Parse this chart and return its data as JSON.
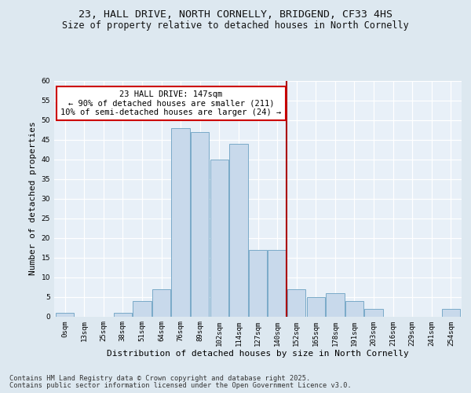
{
  "title_line1": "23, HALL DRIVE, NORTH CORNELLY, BRIDGEND, CF33 4HS",
  "title_line2": "Size of property relative to detached houses in North Cornelly",
  "xlabel": "Distribution of detached houses by size in North Cornelly",
  "ylabel": "Number of detached properties",
  "bin_labels": [
    "0sqm",
    "13sqm",
    "25sqm",
    "38sqm",
    "51sqm",
    "64sqm",
    "76sqm",
    "89sqm",
    "102sqm",
    "114sqm",
    "127sqm",
    "140sqm",
    "152sqm",
    "165sqm",
    "178sqm",
    "191sqm",
    "203sqm",
    "216sqm",
    "229sqm",
    "241sqm",
    "254sqm"
  ],
  "bar_values": [
    1,
    0,
    0,
    1,
    4,
    7,
    48,
    47,
    40,
    44,
    17,
    17,
    7,
    5,
    6,
    4,
    2,
    0,
    0,
    0,
    2
  ],
  "bar_color": "#c8d9eb",
  "bar_edge_color": "#7aaac8",
  "vline_x_index": 11.5,
  "annotation_text": "23 HALL DRIVE: 147sqm\n← 90% of detached houses are smaller (211)\n10% of semi-detached houses are larger (24) →",
  "annotation_box_color": "#ffffff",
  "annotation_box_edge": "#cc0000",
  "vline_color": "#aa0000",
  "ylim": [
    0,
    60
  ],
  "yticks": [
    0,
    5,
    10,
    15,
    20,
    25,
    30,
    35,
    40,
    45,
    50,
    55,
    60
  ],
  "footnote1": "Contains HM Land Registry data © Crown copyright and database right 2025.",
  "footnote2": "Contains public sector information licensed under the Open Government Licence v3.0.",
  "bg_color": "#dde8f0",
  "plot_bg_color": "#e8f0f8",
  "title_fontsize": 9.5,
  "subtitle_fontsize": 8.5,
  "tick_fontsize": 6.5,
  "label_fontsize": 8,
  "annotation_fontsize": 7.5,
  "footnote_fontsize": 6.2
}
